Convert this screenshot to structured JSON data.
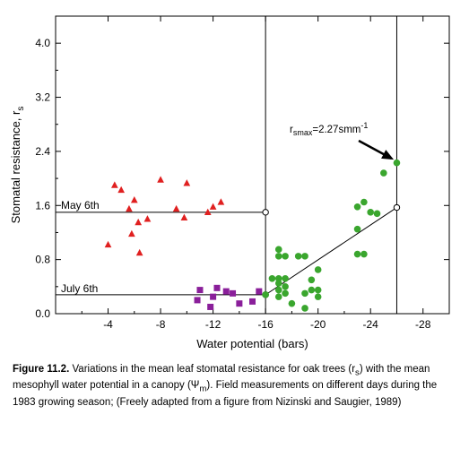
{
  "chart_data": {
    "type": "scatter",
    "xlabel": "Water potential (bars)",
    "ylabel": "Stomatal resistance, r",
    "ylabel_sub": "s",
    "xlim": [
      0,
      -30
    ],
    "ylim": [
      0,
      4.4
    ],
    "x_ticks": [
      "-4",
      "-8",
      "-12",
      "-16",
      "-20",
      "-24",
      "-28"
    ],
    "x_tick_values": [
      -4,
      -8,
      -12,
      -16,
      -20,
      -24,
      -28
    ],
    "y_ticks": [
      "0.0",
      "0.8",
      "1.6",
      "2.4",
      "3.2",
      "4.0"
    ],
    "y_tick_values": [
      0.0,
      0.8,
      1.6,
      2.4,
      3.2,
      4.0
    ],
    "colors": {
      "may": "#e02020",
      "july_purple": "#8a1f9a",
      "green": "#3aa62e"
    },
    "series": [
      {
        "name": "",
        "marker": "triangle",
        "color": "#e02020",
        "points": [
          [
            -4.0,
            1.02
          ],
          [
            -4.5,
            1.9
          ],
          [
            -5.0,
            1.83
          ],
          [
            -5.6,
            1.55
          ],
          [
            -5.8,
            1.18
          ],
          [
            -6.0,
            1.68
          ],
          [
            -6.3,
            1.35
          ],
          [
            -6.4,
            0.9
          ],
          [
            -7.0,
            1.4
          ],
          [
            -8.0,
            1.98
          ],
          [
            -9.2,
            1.55
          ],
          [
            -9.8,
            1.42
          ],
          [
            -10.0,
            1.93
          ],
          [
            -11.6,
            1.5
          ],
          [
            -12.0,
            1.58
          ],
          [
            -12.6,
            1.65
          ]
        ]
      },
      {
        "name": "",
        "marker": "square",
        "color": "#8a1f9a",
        "points": [
          [
            -10.8,
            0.2
          ],
          [
            -11.0,
            0.35
          ],
          [
            -11.8,
            0.1
          ],
          [
            -12.0,
            0.25
          ],
          [
            -12.3,
            0.38
          ],
          [
            -13.0,
            0.33
          ],
          [
            -13.5,
            0.3
          ],
          [
            -14.0,
            0.15
          ],
          [
            -15.0,
            0.18
          ],
          [
            -15.5,
            0.33
          ]
        ]
      },
      {
        "name": "",
        "marker": "circle",
        "color": "#3aa62e",
        "points": [
          [
            -16.0,
            0.28
          ],
          [
            -16.5,
            0.52
          ],
          [
            -17.0,
            0.95
          ],
          [
            -17.0,
            0.85
          ],
          [
            -17.0,
            0.52
          ],
          [
            -17.0,
            0.45
          ],
          [
            -17.0,
            0.35
          ],
          [
            -17.0,
            0.25
          ],
          [
            -17.5,
            0.52
          ],
          [
            -17.5,
            0.4
          ],
          [
            -17.5,
            0.3
          ],
          [
            -17.5,
            0.85
          ],
          [
            -18.0,
            0.15
          ],
          [
            -18.5,
            0.85
          ],
          [
            -19.0,
            0.85
          ],
          [
            -19.0,
            0.08
          ],
          [
            -19.0,
            0.3
          ],
          [
            -19.5,
            0.35
          ],
          [
            -19.5,
            0.5
          ],
          [
            -20.0,
            0.35
          ],
          [
            -20.0,
            0.25
          ],
          [
            -20.0,
            0.65
          ],
          [
            -23.0,
            0.88
          ],
          [
            -23.0,
            1.25
          ],
          [
            -23.0,
            1.58
          ],
          [
            -23.5,
            0.88
          ],
          [
            -23.5,
            1.65
          ],
          [
            -24.0,
            1.5
          ],
          [
            -24.5,
            1.48
          ],
          [
            -25.0,
            2.08
          ],
          [
            -26.0,
            2.23
          ]
        ]
      }
    ],
    "reference_lines": {
      "vertical_at_x": [
        -16,
        -26
      ],
      "horizontal_at_y": [
        1.5,
        0.28
      ],
      "fit_line": [
        [
          -16,
          0.28
        ],
        [
          -26,
          1.57
        ]
      ],
      "open_points": [
        [
          -16,
          1.5
        ],
        [
          -16,
          0.28
        ],
        [
          -26,
          1.57
        ]
      ]
    },
    "annotations": {
      "may": "May 6th",
      "july": "July 6th",
      "rsmax_prefix": "r",
      "rsmax_sub": "smax",
      "rsmax_value": "=2.27smm",
      "rsmax_sup": "-1"
    }
  },
  "caption": {
    "label": "Figure 11.2.",
    "text": " Variations in the mean leaf stomatal resistance for oak trees (r",
    "sub1": "s",
    "text2": ") with the mean mesophyll water potential in a canopy (Ψ",
    "sub2": "m",
    "text3": "). Field measurements on different days during the 1983 growing season; (Freely adapted from a figure from Nizinski and Saugier, 1989)"
  }
}
